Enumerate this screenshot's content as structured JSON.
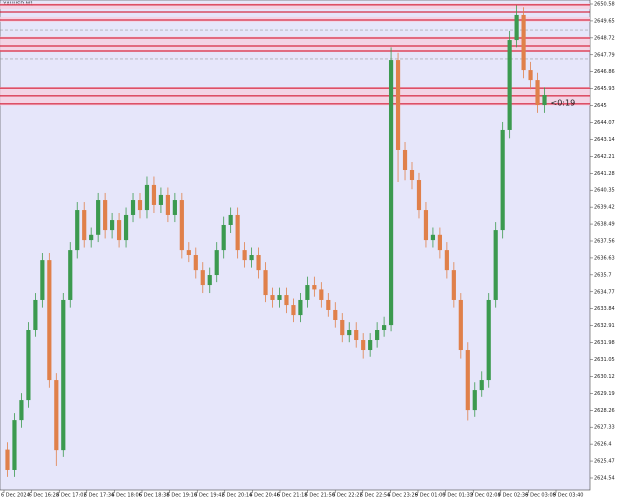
{
  "chart_data": {
    "type": "candlestick",
    "title": "XAUUSD,M1",
    "annotations": [
      "<0:19"
    ],
    "up_color": "#3c9a4f",
    "down_color": "#e0804a",
    "x_labels": [
      "6 Dec 2024",
      "6 Dec 16:28",
      "6 Dec 17:02",
      "6 Dec 17:34",
      "6 Dec 18:06",
      "6 Dec 18:38",
      "6 Dec 19:10",
      "6 Dec 19:42",
      "6 Dec 20:14",
      "6 Dec 20:46",
      "6 Dec 21:18",
      "6 Dec 21:50",
      "6 Dec 22:22",
      "6 Dec 22:54",
      "6 Dec 23:26",
      "9 Dec 01:00",
      "9 Dec 01:32",
      "9 Dec 02:04",
      "9 Dec 02:36",
      "9 Dec 03:08",
      "9 Dec 03:40"
    ],
    "open": [
      2626.1,
      2624.98,
      2627.72,
      2628.82,
      2632.67,
      2634.32,
      2636.51,
      2629.92,
      2626.07,
      2634.32,
      2637.06,
      2639.26,
      2637.61,
      2637.9,
      2639.81,
      2638.16,
      2638.71,
      2637.61,
      2638.99,
      2639.81,
      2639.26,
      2640.64,
      2639.54,
      2640.09,
      2638.99,
      2639.81,
      2637.06,
      2636.79,
      2635.96,
      2635.14,
      2635.69,
      2637.06,
      2638.44,
      2638.99,
      2637.06,
      2636.51,
      2636.79,
      2635.96,
      2634.59,
      2634.32,
      2634.59,
      2634.04,
      2633.49,
      2634.32,
      2635.14,
      2634.9,
      2634.32,
      2633.77,
      2633.22,
      2632.39,
      2632.67,
      2632.12,
      2631.57,
      2632.12,
      2632.67,
      2632.94,
      2647.5,
      2642.56,
      2641.46,
      2640.91,
      2639.26,
      2637.61,
      2637.9,
      2637.06,
      2635.96,
      2634.32,
      2631.57,
      2628.27,
      2629.37,
      2629.92,
      2634.32,
      2638.16,
      2643.66,
      2648.6,
      2649.98,
      2646.95,
      2646.4,
      2645.03
    ],
    "high": [
      2626.5,
      2628.1,
      2629.2,
      2633.1,
      2634.7,
      2636.9,
      2636.9,
      2630.3,
      2634.7,
      2637.5,
      2639.7,
      2639.7,
      2638.3,
      2640.2,
      2640.2,
      2639.1,
      2639.1,
      2639.4,
      2640.2,
      2640.2,
      2641.1,
      2641.1,
      2640.5,
      2640.5,
      2640.2,
      2640.2,
      2637.5,
      2637.2,
      2636.4,
      2636.1,
      2637.5,
      2638.9,
      2639.4,
      2639.4,
      2637.5,
      2637.2,
      2637.2,
      2636.4,
      2635.0,
      2635.0,
      2635.0,
      2634.4,
      2634.7,
      2635.6,
      2635.6,
      2635.3,
      2634.7,
      2634.2,
      2633.6,
      2633.1,
      2633.1,
      2632.5,
      2632.5,
      2633.1,
      2633.4,
      2648.2,
      2647.9,
      2643.0,
      2641.9,
      2641.3,
      2639.7,
      2638.3,
      2638.3,
      2637.5,
      2636.4,
      2634.7,
      2632.0,
      2629.8,
      2630.4,
      2634.7,
      2638.6,
      2644.1,
      2649.1,
      2650.5,
      2650.4,
      2647.4,
      2646.8,
      2646.0
    ],
    "low": [
      2624.6,
      2624.6,
      2627.3,
      2628.4,
      2632.3,
      2633.9,
      2629.5,
      2625.2,
      2625.7,
      2633.9,
      2636.6,
      2637.2,
      2637.2,
      2637.5,
      2637.7,
      2637.7,
      2637.2,
      2637.2,
      2638.6,
      2638.8,
      2638.8,
      2639.1,
      2639.1,
      2638.6,
      2638.6,
      2636.6,
      2636.4,
      2635.5,
      2634.7,
      2634.7,
      2635.3,
      2636.6,
      2638.0,
      2636.6,
      2636.1,
      2636.1,
      2635.5,
      2634.2,
      2633.9,
      2633.9,
      2633.6,
      2633.1,
      2633.1,
      2633.9,
      2634.5,
      2633.9,
      2633.4,
      2632.8,
      2632.0,
      2632.0,
      2631.7,
      2631.1,
      2631.2,
      2631.7,
      2632.3,
      2632.6,
      2640.8,
      2640.9,
      2640.4,
      2638.8,
      2637.2,
      2637.2,
      2636.6,
      2635.5,
      2633.9,
      2631.1,
      2627.7,
      2627.9,
      2629.0,
      2629.5,
      2633.9,
      2637.7,
      2643.2,
      2648.2,
      2646.5,
      2645.9,
      2644.6,
      2644.6
    ],
    "close": [
      2624.98,
      2627.72,
      2628.82,
      2632.67,
      2634.32,
      2636.51,
      2629.92,
      2626.07,
      2634.32,
      2637.06,
      2639.26,
      2637.61,
      2637.9,
      2639.81,
      2638.16,
      2638.71,
      2637.61,
      2638.99,
      2639.81,
      2639.26,
      2640.64,
      2639.54,
      2640.09,
      2638.99,
      2639.81,
      2637.06,
      2636.79,
      2635.96,
      2635.14,
      2635.69,
      2637.06,
      2638.44,
      2638.99,
      2637.06,
      2636.51,
      2636.79,
      2635.96,
      2634.59,
      2634.32,
      2634.59,
      2634.04,
      2633.49,
      2634.32,
      2635.14,
      2634.9,
      2634.32,
      2633.77,
      2633.22,
      2632.39,
      2632.67,
      2632.12,
      2631.57,
      2632.12,
      2632.67,
      2632.94,
      2647.5,
      2642.56,
      2641.46,
      2640.91,
      2639.26,
      2637.61,
      2637.9,
      2637.06,
      2635.96,
      2634.32,
      2631.57,
      2628.27,
      2629.37,
      2629.92,
      2634.32,
      2638.16,
      2643.66,
      2648.6,
      2649.98,
      2646.95,
      2646.4,
      2645.03,
      2645.58
    ],
    "ylim": [
      2623.88,
      2650.8
    ],
    "yticks": [
      2624.54,
      2625.47,
      2626.4,
      2627.33,
      2628.26,
      2629.19,
      2630.12,
      2631.05,
      2631.98,
      2632.91,
      2633.84,
      2634.77,
      2635.7,
      2636.63,
      2637.56,
      2638.49,
      2639.42,
      2640.35,
      2641.28,
      2642.21,
      2643.14,
      2644.07,
      2645,
      2645.93,
      2646.86,
      2647.79,
      2648.72,
      2649.65,
      2650.58
    ],
    "zones": [
      [
        2650.3,
        2650.62
      ],
      [
        2649.6,
        2649.87
      ],
      [
        2647.95,
        2648.79
      ],
      [
        2645.0,
        2646.02
      ]
    ],
    "levels": [
      2650.53,
      2650.14,
      2649.7,
      2648.71,
      2648.27,
      2648.0,
      2645.96,
      2645.53,
      2645.09
    ],
    "level_color": "#d0021b",
    "dashed_levels": [
      2649.15,
      2647.56
    ]
  }
}
